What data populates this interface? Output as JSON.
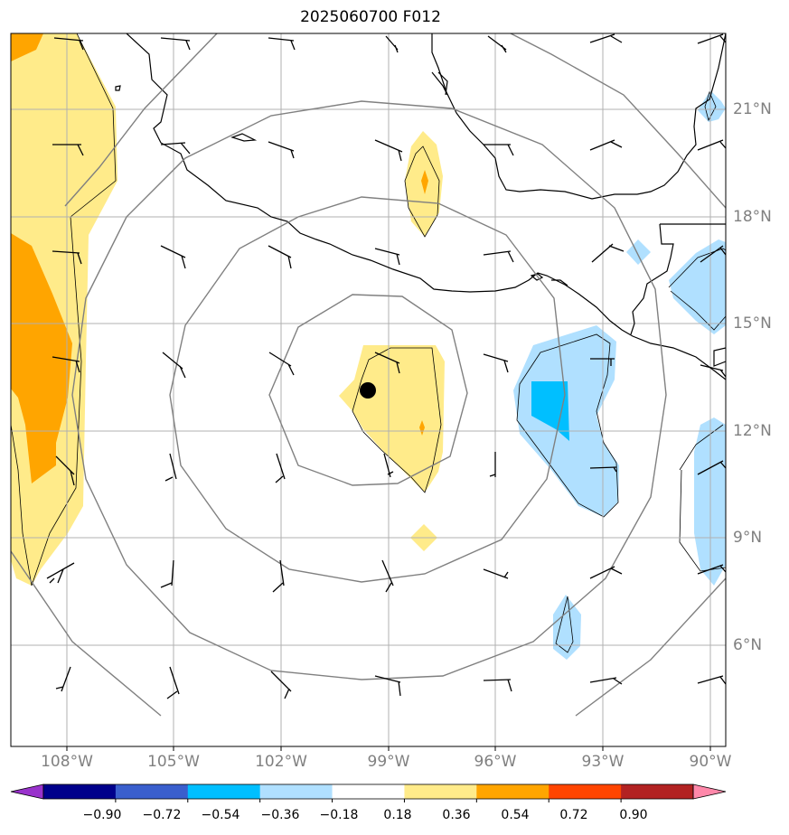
{
  "title": "2025060700 F012",
  "lon_labels": [
    "108°W",
    "105°W",
    "102°W",
    "99°W",
    "96°W",
    "93°W",
    "90°W"
  ],
  "lat_labels": [
    "21°N",
    "18°N",
    "15°N",
    "12°N",
    "9°N",
    "6°N"
  ],
  "colorbar": {
    "ticks": [
      "−0.90",
      "−0.72",
      "−0.54",
      "−0.36",
      "−0.18",
      "0.18",
      "0.36",
      "0.54",
      "0.72",
      "0.90"
    ],
    "colors": [
      "#9932cc",
      "#00008b",
      "#3a5fcd",
      "#00bfff",
      "#b0e0ff",
      "#ffffff",
      "#ffeb8a",
      "#ffa500",
      "#ff4500",
      "#b22222",
      "#ff88aa"
    ]
  },
  "colors": {
    "contour": "#808080",
    "coast": "#000000",
    "grid": "#b0b0b0",
    "shade_pos_1": "#ffeb8a",
    "shade_pos_2": "#ffa500",
    "shade_neg_1": "#b0e0ff",
    "shade_neg_2": "#00bfff"
  }
}
